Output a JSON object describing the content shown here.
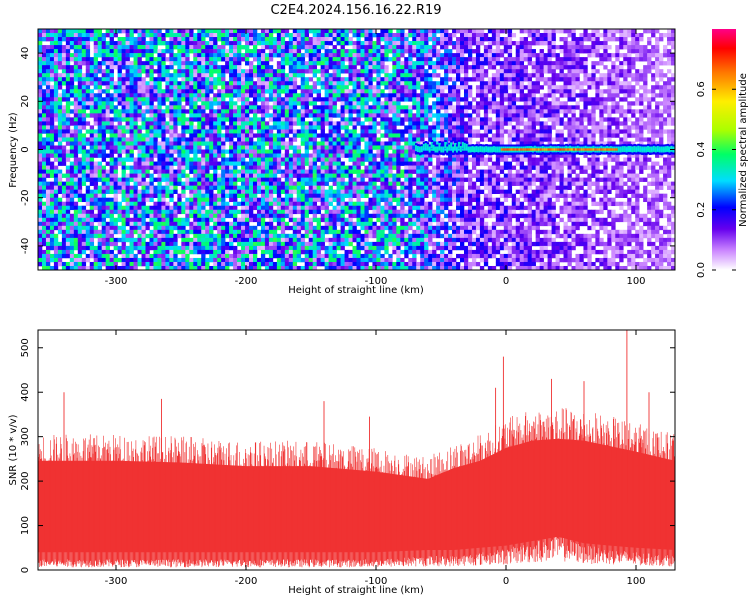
{
  "figure": {
    "title": "C2E4.2024.156.16.22.R19"
  },
  "chart_data": [
    {
      "type": "heatmap",
      "title": "C2E4.2024.156.16.22.R19",
      "xlabel": "Height of straight line (km)",
      "ylabel": "Frequency (Hz)",
      "xlim": [
        -360,
        130
      ],
      "ylim": [
        -50,
        50
      ],
      "x_ticks": [
        -300,
        -200,
        -100,
        0,
        100
      ],
      "y_ticks": [
        -40,
        -20,
        0,
        20,
        40
      ],
      "colorbar": {
        "label": "Normalized spectral amplitude",
        "range": [
          0,
          0.8
        ],
        "ticks": [
          0.0,
          0.2,
          0.4,
          0.6
        ]
      },
      "features": [
        {
          "description": "strong narrow signal near 0 Hz",
          "x_range": [
            -70,
            130
          ],
          "frequency": 0,
          "peak_amplitude_range": [
            -5,
            85
          ],
          "peak_amplitude": 0.7
        },
        {
          "description": "diffuse noise background",
          "x_range": [
            -360,
            130
          ],
          "frequency_range": [
            -50,
            50
          ],
          "amplitude": [
            0.05,
            0.3
          ]
        }
      ]
    },
    {
      "type": "area",
      "xlabel": "Height of straight line (km)",
      "ylabel": "SNR (10 * v/v)",
      "xlim": [
        -360,
        130
      ],
      "ylim": [
        0,
        540
      ],
      "x_ticks": [
        -300,
        -200,
        -100,
        0,
        100
      ],
      "y_ticks": [
        0,
        100,
        200,
        300,
        400,
        500
      ],
      "color": "#f03232",
      "envelope": {
        "x": [
          -360,
          -300,
          -250,
          -200,
          -150,
          -100,
          -60,
          -50,
          -40,
          -20,
          0,
          20,
          40,
          60,
          80,
          100,
          130
        ],
        "upper": [
          300,
          300,
          295,
          285,
          285,
          270,
          250,
          265,
          280,
          300,
          335,
          355,
          360,
          355,
          340,
          325,
          300
        ],
        "lower": [
          15,
          15,
          15,
          15,
          15,
          15,
          20,
          20,
          20,
          25,
          30,
          40,
          50,
          35,
          30,
          25,
          20
        ]
      },
      "spikes": [
        {
          "x": -340,
          "y": 400
        },
        {
          "x": -265,
          "y": 385
        },
        {
          "x": -140,
          "y": 380
        },
        {
          "x": -105,
          "y": 345
        },
        {
          "x": -8,
          "y": 410
        },
        {
          "x": -2,
          "y": 480
        },
        {
          "x": 35,
          "y": 430
        },
        {
          "x": 60,
          "y": 425
        },
        {
          "x": 93,
          "y": 540
        },
        {
          "x": 110,
          "y": 400
        }
      ]
    }
  ]
}
